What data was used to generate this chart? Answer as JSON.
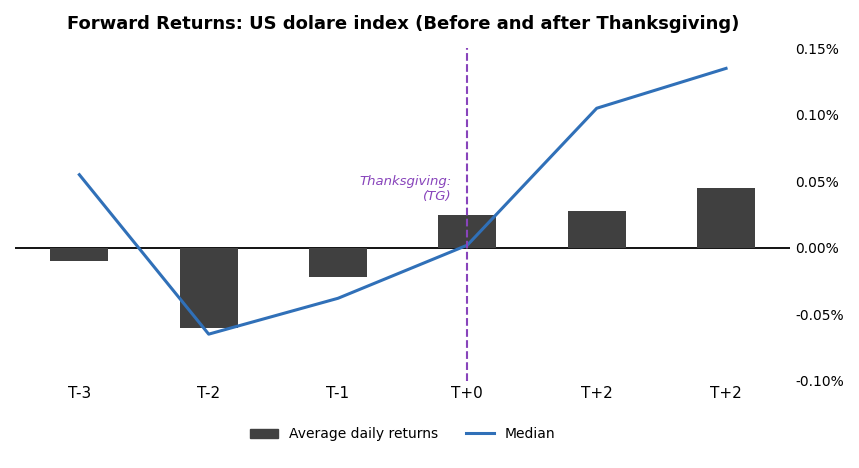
{
  "title": "Forward Returns: US dolare index (Before and after Thanksgiving)",
  "x_labels": [
    "T-3",
    "T-2",
    "T-1",
    "T+0",
    "T+2",
    "T+2"
  ],
  "bar_values": [
    -0.0001,
    -0.0006,
    -0.00022,
    0.00025,
    0.00028,
    0.00045
  ],
  "line_values": [
    0.00055,
    -0.00065,
    -0.00038,
    2e-05,
    0.00105,
    0.00135
  ],
  "bar_color": "#404040",
  "line_color": "#3070b8",
  "vline_color": "#8844bb",
  "vline_x": 3,
  "annotation_text": "Thanksgiving:\n(TG)",
  "annotation_color": "#8844bb",
  "ylim_min": -0.001,
  "ylim_max": 0.0015,
  "yticks": [
    -0.001,
    -0.0005,
    0.0,
    0.0005,
    0.001,
    0.0015
  ],
  "ytick_labels": [
    "-0.10%",
    "-0.05%",
    "0.00%",
    "0.05%",
    "0.10%",
    "0.15%"
  ],
  "background_color": "#ffffff",
  "grid_color": "#cccccc",
  "legend_bar_label": "Average daily returns",
  "legend_line_label": "Median"
}
